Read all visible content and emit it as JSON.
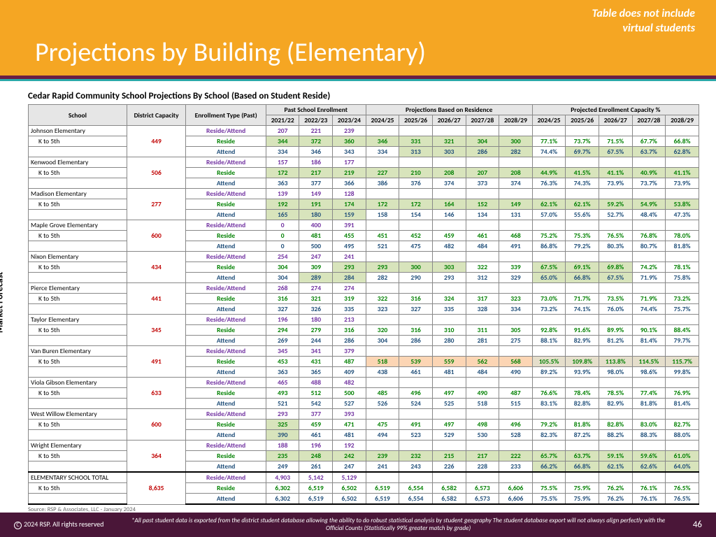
{
  "header": {
    "title": "Projections by Building (Elementary)",
    "note_l1": "Table does not include",
    "note_l2": "virtual students"
  },
  "subtitle": "Cedar Rapid Community School Projections By School (Based on Student Reside)",
  "side_label": "Market Forecast",
  "cols": {
    "c1": "School",
    "c2": "District Capacity",
    "c3": "Enrollment Type (Past)",
    "g1": "Past School Enrollment",
    "g2": "Projections Based on Residence",
    "g3": "Projected Enrollment Capacity %",
    "y1": "2021/22",
    "y2": "2022/23",
    "y3": "2023/24",
    "y4": "2024/25",
    "y5": "2025/26",
    "y6": "2026/27",
    "y7": "2027/28",
    "y8": "2028/29",
    "y9": "2024/25",
    "y10": "2025/26",
    "y11": "2026/27",
    "y12": "2027/28",
    "y13": "2028/29"
  },
  "types": {
    "ra": "Reside/Attend",
    "r": "Reside",
    "a": "Attend"
  },
  "grade": "K to 5th",
  "schools": [
    {
      "name": "Johnson Elementary",
      "cap": "449",
      "ra": [
        "207",
        "221",
        "239",
        "",
        "",
        "",
        "",
        "",
        "",
        "",
        "",
        "",
        ""
      ],
      "r": [
        "344",
        "372",
        "360",
        "346",
        "331",
        "321",
        "304",
        "300",
        "77.1%",
        "73.7%",
        "71.5%",
        "67.7%",
        "66.8%"
      ],
      "r_hl": [
        "g",
        "g",
        "g",
        "g",
        "g",
        "g",
        "g",
        "g",
        "",
        "",
        "",
        "",
        ""
      ],
      "a": [
        "334",
        "346",
        "343",
        "334",
        "313",
        "303",
        "286",
        "282",
        "74.4%",
        "69.7%",
        "67.5%",
        "63.7%",
        "62.8%"
      ],
      "a_hl": [
        "",
        "",
        "",
        "",
        "g",
        "g",
        "g",
        "g",
        "",
        "g",
        "g",
        "g",
        "g"
      ]
    },
    {
      "name": "Kenwood Elementary",
      "cap": "506",
      "ra": [
        "157",
        "186",
        "177",
        "",
        "",
        "",
        "",
        "",
        "",
        "",
        "",
        "",
        ""
      ],
      "r": [
        "172",
        "217",
        "219",
        "227",
        "210",
        "208",
        "207",
        "208",
        "44.9%",
        "41.5%",
        "41.1%",
        "40.9%",
        "41.1%"
      ],
      "r_hl": [
        "g",
        "g",
        "g",
        "g",
        "g",
        "g",
        "g",
        "g",
        "g",
        "g",
        "g",
        "g",
        "g"
      ],
      "a": [
        "363",
        "377",
        "366",
        "386",
        "376",
        "374",
        "373",
        "374",
        "76.3%",
        "74.3%",
        "73.9%",
        "73.7%",
        "73.9%"
      ],
      "a_hl": [
        "",
        "",
        "",
        "",
        "",
        "",
        "",
        "",
        "",
        "",
        "",
        "",
        ""
      ]
    },
    {
      "name": "Madison Elementary",
      "cap": "277",
      "ra": [
        "139",
        "149",
        "128",
        "",
        "",
        "",
        "",
        "",
        "",
        "",
        "",
        "",
        ""
      ],
      "r": [
        "192",
        "191",
        "174",
        "172",
        "172",
        "164",
        "152",
        "149",
        "62.1%",
        "62.1%",
        "59.2%",
        "54.9%",
        "53.8%"
      ],
      "r_hl": [
        "g",
        "g",
        "g",
        "g",
        "g",
        "g",
        "g",
        "g",
        "g",
        "g",
        "g",
        "g",
        "g"
      ],
      "a": [
        "165",
        "180",
        "159",
        "158",
        "154",
        "146",
        "134",
        "131",
        "57.0%",
        "55.6%",
        "52.7%",
        "48.4%",
        "47.3%"
      ],
      "a_hl": [
        "g",
        "g",
        "g",
        "",
        "",
        "",
        "",
        "",
        "",
        "",
        "",
        "",
        ""
      ]
    },
    {
      "name": "Maple Grove Elementary",
      "cap": "600",
      "ra": [
        "0",
        "400",
        "391",
        "",
        "",
        "",
        "",
        "",
        "",
        "",
        "",
        "",
        ""
      ],
      "r": [
        "0",
        "481",
        "455",
        "451",
        "452",
        "459",
        "461",
        "468",
        "75.2%",
        "75.3%",
        "76.5%",
        "76.8%",
        "78.0%"
      ],
      "r_hl": [
        "",
        "",
        "",
        "",
        "",
        "",
        "",
        "",
        "",
        "",
        "",
        "",
        ""
      ],
      "a": [
        "0",
        "500",
        "495",
        "521",
        "475",
        "482",
        "484",
        "491",
        "86.8%",
        "79.2%",
        "80.3%",
        "80.7%",
        "81.8%"
      ],
      "a_hl": [
        "",
        "",
        "",
        "",
        "",
        "",
        "",
        "",
        "",
        "",
        "",
        "",
        ""
      ]
    },
    {
      "name": "Nixon Elementary",
      "cap": "434",
      "ra": [
        "254",
        "247",
        "241",
        "",
        "",
        "",
        "",
        "",
        "",
        "",
        "",
        "",
        ""
      ],
      "r": [
        "304",
        "309",
        "293",
        "293",
        "300",
        "303",
        "322",
        "339",
        "67.5%",
        "69.1%",
        "69.8%",
        "74.2%",
        "78.1%"
      ],
      "r_hl": [
        "",
        "",
        "g",
        "g",
        "g",
        "g",
        "",
        "",
        "g",
        "g",
        "g",
        "",
        ""
      ],
      "a": [
        "304",
        "289",
        "284",
        "282",
        "290",
        "293",
        "312",
        "329",
        "65.0%",
        "66.8%",
        "67.5%",
        "71.9%",
        "75.8%"
      ],
      "a_hl": [
        "",
        "g",
        "g",
        "",
        "",
        "",
        "",
        "",
        "g",
        "g",
        "g",
        "",
        ""
      ]
    },
    {
      "name": "Pierce Elementary",
      "cap": "441",
      "ra": [
        "268",
        "274",
        "274",
        "",
        "",
        "",
        "",
        "",
        "",
        "",
        "",
        "",
        ""
      ],
      "r": [
        "316",
        "321",
        "319",
        "322",
        "316",
        "324",
        "317",
        "323",
        "73.0%",
        "71.7%",
        "73.5%",
        "71.9%",
        "73.2%"
      ],
      "r_hl": [
        "",
        "",
        "",
        "",
        "",
        "",
        "",
        "",
        "",
        "",
        "",
        "",
        ""
      ],
      "a": [
        "327",
        "326",
        "335",
        "323",
        "327",
        "335",
        "328",
        "334",
        "73.2%",
        "74.1%",
        "76.0%",
        "74.4%",
        "75.7%"
      ],
      "a_hl": [
        "",
        "",
        "",
        "",
        "",
        "",
        "",
        "",
        "",
        "",
        "",
        "",
        ""
      ]
    },
    {
      "name": "Taylor Elementary",
      "cap": "345",
      "ra": [
        "196",
        "180",
        "213",
        "",
        "",
        "",
        "",
        "",
        "",
        "",
        "",
        "",
        ""
      ],
      "r": [
        "294",
        "279",
        "316",
        "320",
        "316",
        "310",
        "311",
        "305",
        "92.8%",
        "91.6%",
        "89.9%",
        "90.1%",
        "88.4%"
      ],
      "r_hl": [
        "",
        "",
        "",
        "",
        "",
        "",
        "",
        "",
        "",
        "",
        "",
        "",
        ""
      ],
      "a": [
        "269",
        "244",
        "286",
        "304",
        "286",
        "280",
        "281",
        "275",
        "88.1%",
        "82.9%",
        "81.2%",
        "81.4%",
        "79.7%"
      ],
      "a_hl": [
        "",
        "",
        "",
        "",
        "",
        "",
        "",
        "",
        "",
        "",
        "",
        "",
        ""
      ]
    },
    {
      "name": "Van Buren Elementary",
      "cap": "491",
      "ra": [
        "345",
        "341",
        "379",
        "",
        "",
        "",
        "",
        "",
        "",
        "",
        "",
        "",
        ""
      ],
      "r": [
        "453",
        "431",
        "487",
        "518",
        "539",
        "559",
        "562",
        "568",
        "105.5%",
        "109.8%",
        "113.8%",
        "114.5%",
        "115.7%"
      ],
      "r_hl": [
        "",
        "",
        "",
        "o",
        "o",
        "o",
        "o",
        "o",
        "og",
        "og",
        "og",
        "og",
        "og"
      ],
      "a": [
        "363",
        "365",
        "409",
        "438",
        "461",
        "481",
        "484",
        "490",
        "89.2%",
        "93.9%",
        "98.0%",
        "98.6%",
        "99.8%"
      ],
      "a_hl": [
        "",
        "",
        "",
        "",
        "",
        "",
        "",
        "",
        "",
        "",
        "",
        "",
        ""
      ]
    },
    {
      "name": "Viola Gibson Elementary",
      "cap": "633",
      "ra": [
        "465",
        "488",
        "482",
        "",
        "",
        "",
        "",
        "",
        "",
        "",
        "",
        "",
        ""
      ],
      "r": [
        "493",
        "512",
        "500",
        "485",
        "496",
        "497",
        "490",
        "487",
        "76.6%",
        "78.4%",
        "78.5%",
        "77.4%",
        "76.9%"
      ],
      "r_hl": [
        "",
        "",
        "",
        "",
        "",
        "",
        "",
        "",
        "",
        "",
        "",
        "",
        ""
      ],
      "a": [
        "521",
        "542",
        "527",
        "526",
        "524",
        "525",
        "518",
        "515",
        "83.1%",
        "82.8%",
        "82.9%",
        "81.8%",
        "81.4%"
      ],
      "a_hl": [
        "",
        "",
        "",
        "",
        "",
        "",
        "",
        "",
        "",
        "",
        "",
        "",
        ""
      ]
    },
    {
      "name": "West Willow Elementary",
      "cap": "600",
      "ra": [
        "293",
        "377",
        "393",
        "",
        "",
        "",
        "",
        "",
        "",
        "",
        "",
        "",
        ""
      ],
      "r": [
        "325",
        "459",
        "471",
        "475",
        "491",
        "497",
        "498",
        "496",
        "79.2%",
        "81.8%",
        "82.8%",
        "83.0%",
        "82.7%"
      ],
      "r_hl": [
        "g",
        "",
        "",
        "",
        "",
        "",
        "",
        "",
        "",
        "",
        "",
        "",
        ""
      ],
      "a": [
        "390",
        "461",
        "481",
        "494",
        "523",
        "529",
        "530",
        "528",
        "82.3%",
        "87.2%",
        "88.2%",
        "88.3%",
        "88.0%"
      ],
      "a_hl": [
        "g",
        "",
        "",
        "",
        "",
        "",
        "",
        "",
        "",
        "",
        "",
        "",
        ""
      ]
    },
    {
      "name": "Wright Elementary",
      "cap": "364",
      "ra": [
        "188",
        "196",
        "192",
        "",
        "",
        "",
        "",
        "",
        "",
        "",
        "",
        "",
        ""
      ],
      "r": [
        "235",
        "248",
        "242",
        "239",
        "232",
        "215",
        "217",
        "222",
        "65.7%",
        "63.7%",
        "59.1%",
        "59.6%",
        "61.0%"
      ],
      "r_hl": [
        "g",
        "g",
        "g",
        "g",
        "g",
        "g",
        "g",
        "g",
        "g",
        "g",
        "g",
        "g",
        "g"
      ],
      "a": [
        "249",
        "261",
        "247",
        "241",
        "243",
        "226",
        "228",
        "233",
        "66.2%",
        "66.8%",
        "62.1%",
        "62.6%",
        "64.0%"
      ],
      "a_hl": [
        "",
        "",
        "",
        "",
        "",
        "",
        "",
        "",
        "g",
        "g",
        "g",
        "g",
        "g"
      ]
    }
  ],
  "total": {
    "name": "ELEMENTARY SCHOOL TOTAL",
    "cap": "8,635",
    "ra": [
      "4,903",
      "5,142",
      "5,129",
      "",
      "",
      "",
      "",
      "",
      "",
      "",
      "",
      "",
      ""
    ],
    "r": [
      "6,302",
      "6,519",
      "6,502",
      "6,519",
      "6,554",
      "6,582",
      "6,573",
      "6,606",
      "75.5%",
      "75.9%",
      "76.2%",
      "76.1%",
      "76.5%"
    ],
    "a": [
      "6,302",
      "6,519",
      "6,502",
      "6,519",
      "6,554",
      "6,582",
      "6,573",
      "6,606",
      "75.5%",
      "75.9%",
      "76.2%",
      "76.1%",
      "76.5%"
    ]
  },
  "source": "Source:  RSP & Associates, LLC - January 2024",
  "footer": {
    "copyright": "2024 RSP. All rights reserved",
    "note": "*All past student data is exported from the district student database allowing the ability to do robust statistical analysis by student geography The student database export will not always align perfectly with the Official Counts (Statistically 99% greater match by grade)",
    "page": "46"
  }
}
